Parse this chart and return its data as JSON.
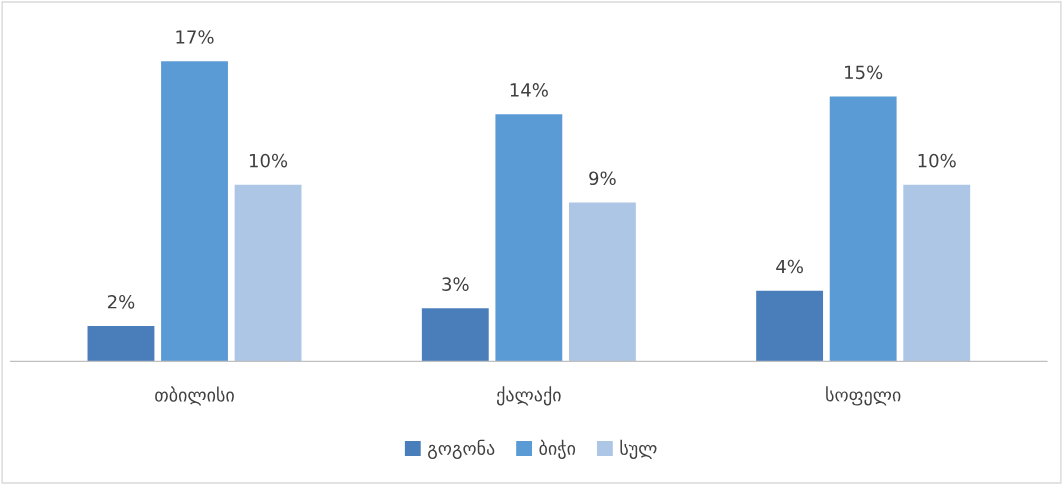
{
  "chart_data": {
    "type": "bar",
    "categories": [
      "თბილისი",
      "ქალაქი",
      "სოფელი"
    ],
    "series": [
      {
        "name": "გოგონა",
        "color": "#4a7ebb",
        "values": [
          2,
          3,
          4
        ],
        "value_labels": [
          "2%",
          "3%",
          "4%"
        ]
      },
      {
        "name": "ბიჭი",
        "color": "#5b9bd5",
        "values": [
          17,
          14,
          15
        ],
        "value_labels": [
          "17%",
          "14%",
          "15%"
        ]
      },
      {
        "name": "სულ",
        "color": "#adc6e6",
        "values": [
          10,
          9,
          10
        ],
        "value_labels": [
          "10%",
          "9%",
          "10%"
        ]
      }
    ],
    "legend": "bottom",
    "grid": false,
    "tick_labels": "x"
  }
}
